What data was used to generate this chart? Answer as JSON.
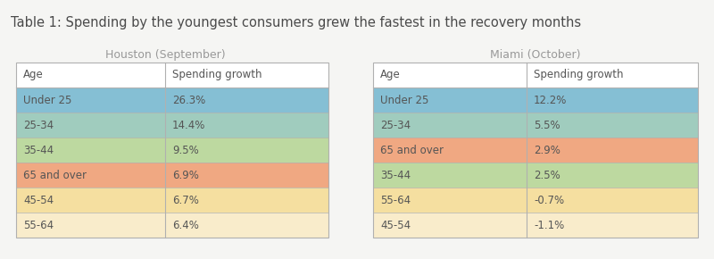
{
  "title": "Table 1: Spending by the youngest consumers grew the fastest in the recovery months",
  "title_color": "#4a4a4a",
  "title_fontsize": 10.5,
  "background_color": "#f5f5f3",
  "houston_subtitle": "Houston (September)",
  "miami_subtitle": "Miami (October)",
  "subtitle_color": "#999999",
  "subtitle_fontsize": 9,
  "col_headers": [
    "Age",
    "Spending growth"
  ],
  "header_bg": "#ffffff",
  "header_text_color": "#555555",
  "houston_rows": [
    {
      "age": "Under 25",
      "value": "26.3%",
      "color": "#85bfd4"
    },
    {
      "age": "25-34",
      "value": "14.4%",
      "color": "#a0ccbe"
    },
    {
      "age": "35-44",
      "value": "9.5%",
      "color": "#bdd9a0"
    },
    {
      "age": "65 and over",
      "value": "6.9%",
      "color": "#f0a882"
    },
    {
      "age": "45-54",
      "value": "6.7%",
      "color": "#f5dfa0"
    },
    {
      "age": "55-64",
      "value": "6.4%",
      "color": "#f9eccb"
    }
  ],
  "miami_rows": [
    {
      "age": "Under 25",
      "value": "12.2%",
      "color": "#85bfd4"
    },
    {
      "age": "25-34",
      "value": "5.5%",
      "color": "#a0ccbe"
    },
    {
      "age": "65 and over",
      "value": "2.9%",
      "color": "#f0a882"
    },
    {
      "age": "35-44",
      "value": "2.5%",
      "color": "#bdd9a0"
    },
    {
      "age": "55-64",
      "value": "-0.7%",
      "color": "#f5dfa0"
    },
    {
      "age": "45-54",
      "value": "-1.1%",
      "color": "#f9eccb"
    }
  ],
  "row_text_color": "#555555",
  "row_fontsize": 8.5,
  "header_fontsize": 8.5,
  "border_color": "#c0c0c0",
  "table_border_color": "#b0b0b0"
}
